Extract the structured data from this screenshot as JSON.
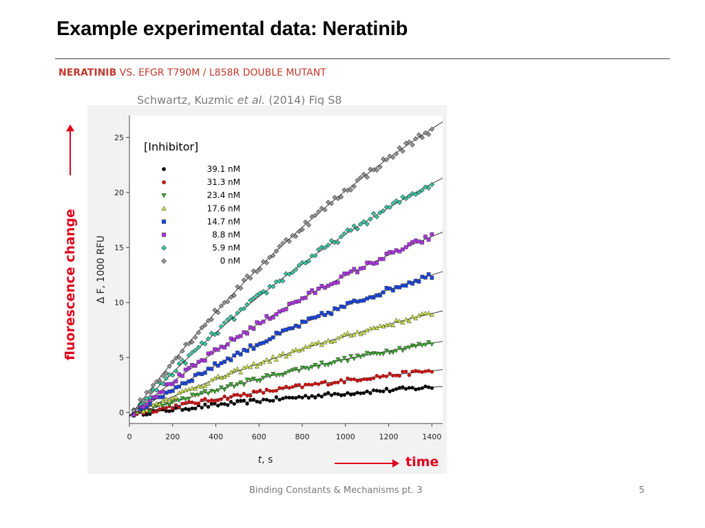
{
  "slide": {
    "title": "Example experimental data: Neratinib",
    "subtitle_bold": "NERATINIB",
    "subtitle_rest": " VS. EFGR T790M / L858R DOUBLE MUTANT",
    "citation_pre": "Schwartz, Kuzmic ",
    "citation_italic": "et al.",
    "citation_post": " (2014) Fig S8",
    "side_label": "fluorescence change",
    "time_label": "time",
    "footer": "Binding Constants & Mechanisms pt. 3",
    "page_number": "5"
  },
  "colors": {
    "annotation_red": "#e0001b",
    "subtitle_red": "#c0392b"
  },
  "chart_data": {
    "type": "scatter",
    "xlabel_italic": "t",
    "xlabel_rest": ", s",
    "ylabel": "Δ F, 1000 RFU",
    "legend_title": "[Inhibitor]",
    "legend_position": "top-left",
    "xlim": [
      0,
      1450
    ],
    "ylim": [
      -1,
      27
    ],
    "xticks": [
      0,
      200,
      400,
      600,
      800,
      1000,
      1200,
      1400
    ],
    "yticks": [
      0,
      5,
      10,
      15,
      20,
      25
    ],
    "grid": false,
    "series": [
      {
        "name": "39.1 nM",
        "marker": "circle",
        "color": "#000000",
        "y_at_0": -0.2,
        "y_at_1400": 2.3
      },
      {
        "name": "31.3 nM",
        "marker": "circle",
        "color": "#cc1111",
        "y_at_0": -0.2,
        "y_at_1400": 3.8
      },
      {
        "name": "23.4 nM",
        "marker": "triangle-down",
        "color": "#33aa22",
        "y_at_0": -0.3,
        "y_at_1400": 6.3
      },
      {
        "name": "17.6 nM",
        "marker": "triangle-up",
        "color": "#c8e040",
        "y_at_0": -0.3,
        "y_at_1400": 9.0
      },
      {
        "name": "14.7 nM",
        "marker": "square",
        "color": "#1a44dd",
        "y_at_0": -0.3,
        "y_at_1400": 12.5
      },
      {
        "name": "8.8 nM",
        "marker": "square",
        "color": "#aa33dd",
        "y_at_0": -0.3,
        "y_at_1400": 16.0
      },
      {
        "name": "5.9 nM",
        "marker": "diamond",
        "color": "#33ccaa",
        "y_at_0": -0.4,
        "y_at_1400": 20.8
      },
      {
        "name": "0 nM",
        "marker": "diamond",
        "color": "#999999",
        "y_at_0": -0.4,
        "y_at_1400": 25.8
      }
    ]
  }
}
